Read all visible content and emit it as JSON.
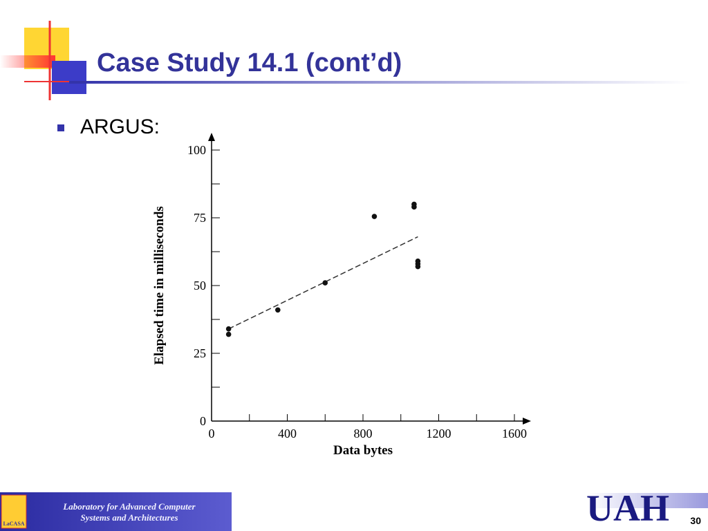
{
  "slide": {
    "title": "Case Study 14.1 (cont’d)",
    "bullet": "ARGUS:",
    "footer_lines": [
      "Laboratory for Advanced Computer",
      "Systems and Architectures"
    ],
    "logo_text": "LaCASA",
    "brand": "UAH",
    "page": "30"
  },
  "chart_data": {
    "type": "scatter",
    "x_label": "Data bytes",
    "y_label": "Elapsed time in milliseconds",
    "series": [
      {
        "x": [
          90,
          90,
          350,
          600,
          860,
          1070,
          1070,
          1090,
          1090,
          1090
        ],
        "values": [
          34,
          32,
          41,
          51,
          75.5,
          80,
          79,
          59,
          58,
          57
        ],
        "color": "#111111"
      }
    ],
    "trendline": {
      "x": [
        90,
        1090
      ],
      "values": [
        34,
        68
      ],
      "color": "#333333"
    },
    "xlim": [
      0,
      1600
    ],
    "ylim": [
      0,
      100
    ],
    "xticks": [
      0,
      400,
      800,
      1200,
      1600
    ],
    "yticks": [
      0,
      25,
      50,
      75,
      100
    ],
    "xminorticks": [
      200,
      600,
      1000,
      1400
    ],
    "yminorticks": [
      12.5,
      37.5,
      62.5,
      87.5
    ]
  }
}
